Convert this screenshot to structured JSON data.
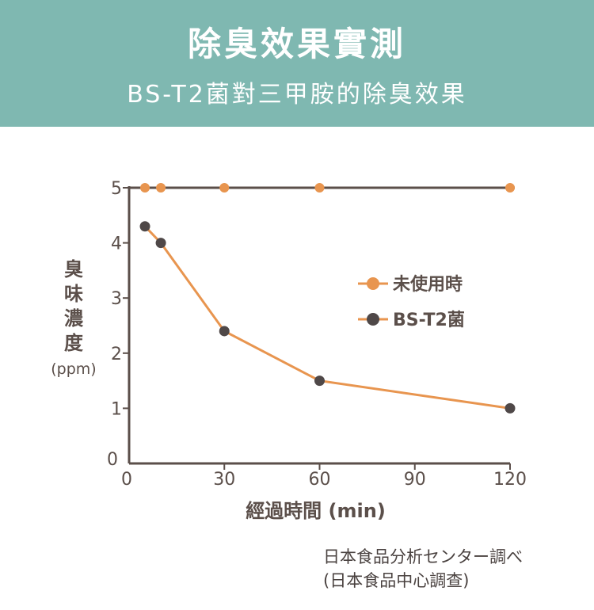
{
  "header": {
    "title": "除臭效果實測",
    "subtitle": "BS-T2菌對三甲胺的除臭效果"
  },
  "colors": {
    "banner": "#7fb8b1",
    "axis": "#5b4f4a",
    "series_untreated": "#e8954f",
    "series_bst2_marker": "#4f4848",
    "series_bst2_line": "#e8954f"
  },
  "chart_data": {
    "type": "line",
    "xlabel": "經過時間 (min)",
    "ylabel": "臭味濃度",
    "ylabel_unit": "(ppm)",
    "xlim": [
      0,
      120
    ],
    "ylim": [
      0,
      5
    ],
    "xticks": [
      0,
      30,
      60,
      90,
      120
    ],
    "yticks": [
      0,
      1,
      2,
      3,
      4,
      5
    ],
    "legend_position": "right-middle",
    "grid": false,
    "series": [
      {
        "name": "未使用時",
        "x": [
          5,
          10,
          30,
          60,
          120
        ],
        "y": [
          5,
          5,
          5,
          5,
          5
        ]
      },
      {
        "name": "BS-T2菌",
        "x": [
          5,
          10,
          30,
          60,
          120
        ],
        "y": [
          4.3,
          4.0,
          2.4,
          1.5,
          1.0
        ]
      }
    ]
  },
  "source": {
    "line1": "日本食品分析センター調べ",
    "line2": "(日本食品中心調查)"
  }
}
